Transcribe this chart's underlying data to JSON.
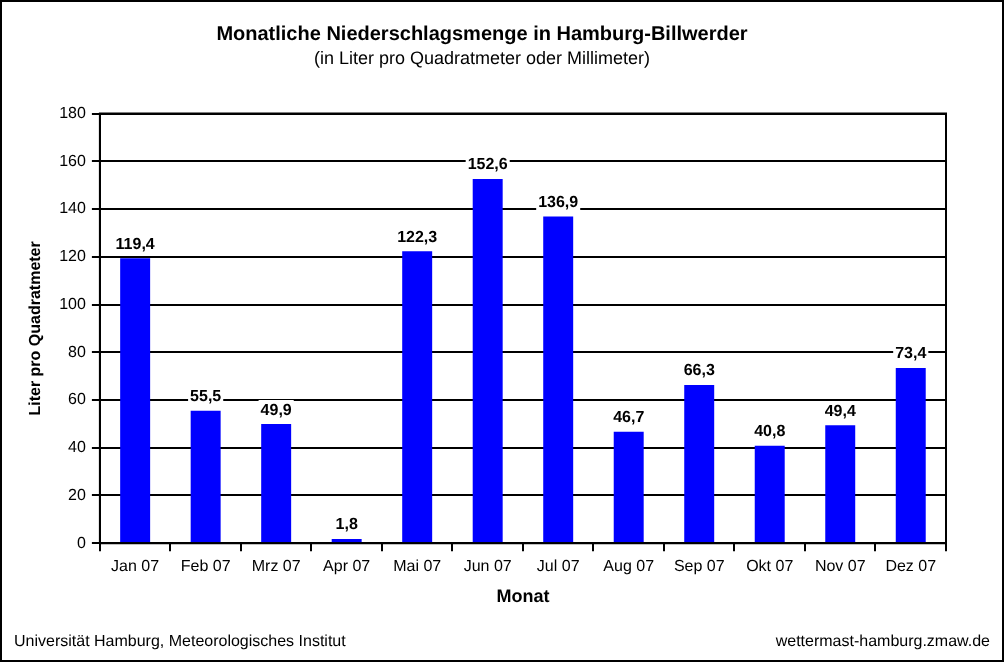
{
  "chart_data": {
    "type": "bar",
    "title": "Monatliche Niederschlagsmenge in Hamburg-Billwerder",
    "subtitle": "(in Liter pro Quadratmeter oder Millimeter)",
    "xlabel": "Monat",
    "ylabel": "Liter pro Quadratmeter",
    "categories": [
      "Jan 07",
      "Feb 07",
      "Mrz 07",
      "Apr 07",
      "Mai 07",
      "Jun 07",
      "Jul 07",
      "Aug 07",
      "Sep 07",
      "Okt 07",
      "Nov 07",
      "Dez 07"
    ],
    "values": [
      119.4,
      55.5,
      49.9,
      1.8,
      122.3,
      152.6,
      136.9,
      46.7,
      66.3,
      40.8,
      49.4,
      73.4
    ],
    "value_labels": [
      "119,4",
      "55,5",
      "49,9",
      "1,8",
      "122,3",
      "152,6",
      "136,9",
      "46,7",
      "66,3",
      "40,8",
      "49,4",
      "73,4"
    ],
    "color": "#0000ff",
    "ylim": [
      0,
      180
    ],
    "yticks": [
      0,
      20,
      40,
      60,
      80,
      100,
      120,
      140,
      160,
      180
    ],
    "grid": "y",
    "legend": false,
    "annotations": [
      "Universität Hamburg, Meteorologisches Institut",
      "wettermast-hamburg.zmaw.de"
    ]
  }
}
